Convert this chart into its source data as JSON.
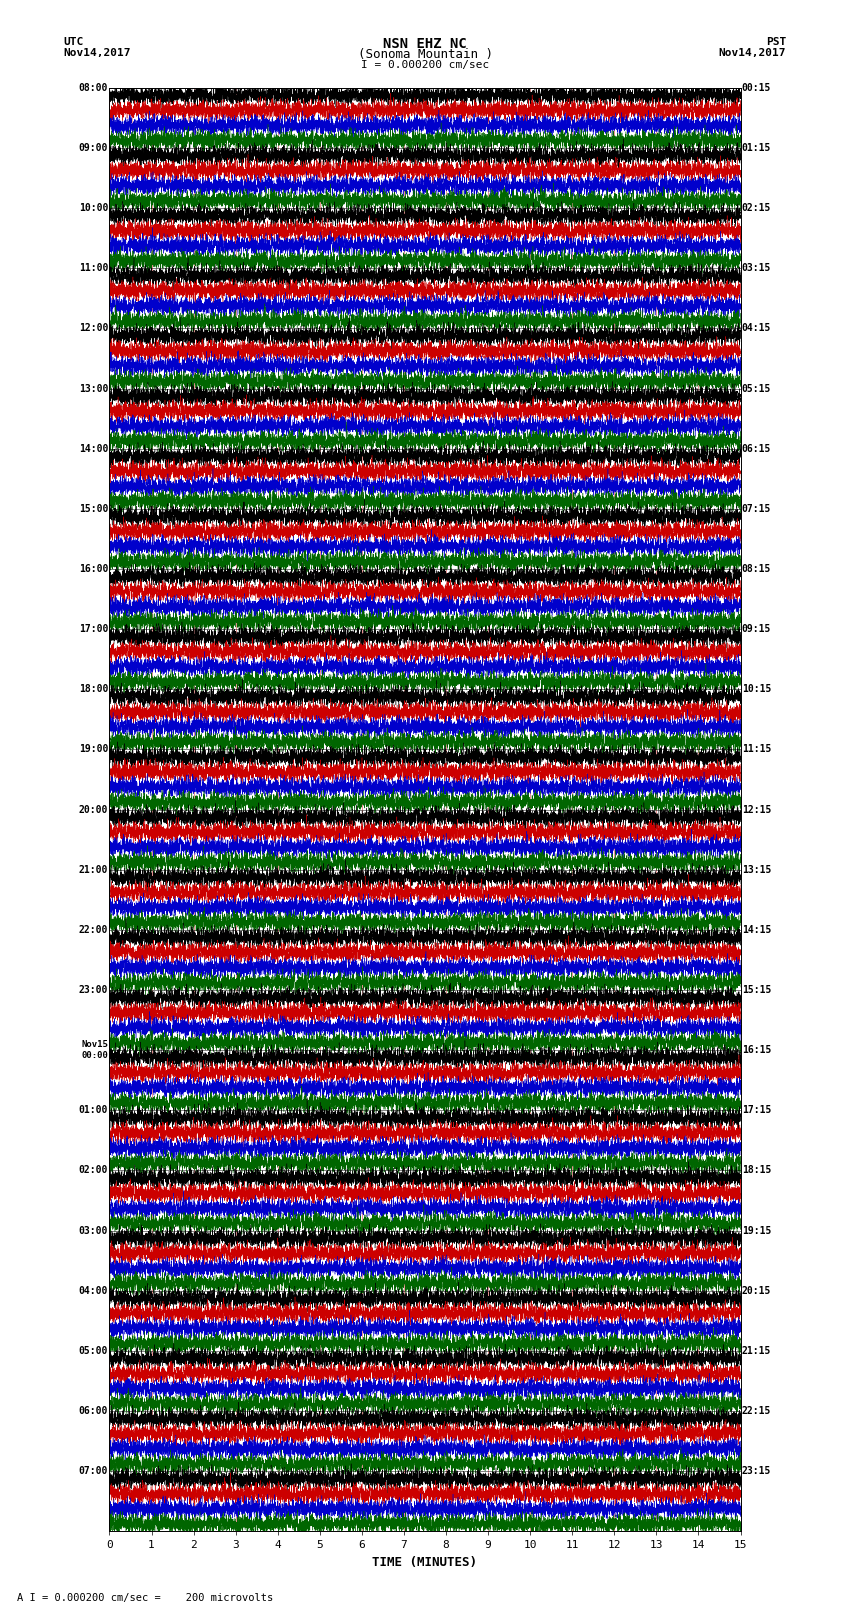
{
  "title_line1": "NSN EHZ NC",
  "title_line2": "(Sonoma Mountain )",
  "title_line3": "I = 0.000200 cm/sec",
  "label_left_top1": "UTC",
  "label_left_top2": "Nov14,2017",
  "label_right_top1": "PST",
  "label_right_top2": "Nov14,2017",
  "xlabel": "TIME (MINUTES)",
  "footer": "A I = 0.000200 cm/sec =    200 microvolts",
  "background_color": "#ffffff",
  "trace_colors": [
    "#000000",
    "#cc0000",
    "#0000cc",
    "#006600"
  ],
  "utc_labels": [
    "08:00",
    "09:00",
    "10:00",
    "11:00",
    "12:00",
    "13:00",
    "14:00",
    "15:00",
    "16:00",
    "17:00",
    "18:00",
    "19:00",
    "20:00",
    "21:00",
    "22:00",
    "23:00",
    "Nov15\n00:00",
    "01:00",
    "02:00",
    "03:00",
    "04:00",
    "05:00",
    "06:00",
    "07:00"
  ],
  "pst_labels": [
    "00:15",
    "01:15",
    "02:15",
    "03:15",
    "04:15",
    "05:15",
    "06:15",
    "07:15",
    "08:15",
    "09:15",
    "10:15",
    "11:15",
    "12:15",
    "13:15",
    "14:15",
    "15:15",
    "16:15",
    "17:15",
    "18:15",
    "19:15",
    "20:15",
    "21:15",
    "22:15",
    "23:15"
  ],
  "n_rows": 24,
  "n_traces_per_row": 4,
  "x_min": 0,
  "x_max": 15,
  "x_ticks": [
    0,
    1,
    2,
    3,
    4,
    5,
    6,
    7,
    8,
    9,
    10,
    11,
    12,
    13,
    14,
    15
  ],
  "grid_color": "#aaaaaa",
  "grid_lw": 0.4
}
